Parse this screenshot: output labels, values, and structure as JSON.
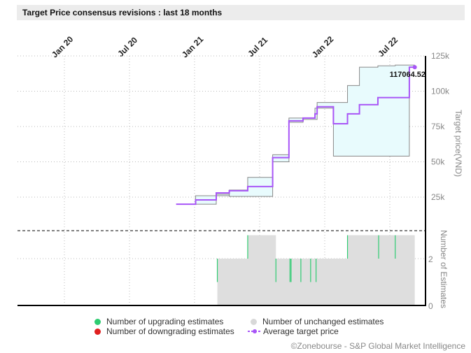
{
  "title": "Target Price consensus revisions : last 18 months",
  "credit": "©Zonebourse - S&P Global Market Intelligence",
  "chart_data": {
    "type": "line",
    "x_unit": "months since Jan 2020",
    "x_ticks": [
      {
        "label": "Jan 20",
        "m": 0
      },
      {
        "label": "Jul 20",
        "m": 6
      },
      {
        "label": "Jan 21",
        "m": 12
      },
      {
        "label": "Jul 21",
        "m": 18
      },
      {
        "label": "Jan 22",
        "m": 24
      },
      {
        "label": "Jul 22",
        "m": 30
      }
    ],
    "y_ticks": [
      {
        "label": "125k",
        "v": 125
      },
      {
        "label": "100k",
        "v": 100
      },
      {
        "label": "75k",
        "v": 75
      },
      {
        "label": "50k",
        "v": 50
      },
      {
        "label": "25k",
        "v": 25
      }
    ],
    "ylabel": "Target price(VND)",
    "ylim": [
      0,
      125
    ],
    "last_label": "117064.52",
    "average": [
      [
        10.3,
        20
      ],
      [
        12.1,
        20
      ],
      [
        12.1,
        23
      ],
      [
        14,
        23
      ],
      [
        14,
        28
      ],
      [
        15.2,
        28
      ],
      [
        15.2,
        29.5
      ],
      [
        16.9,
        29.5
      ],
      [
        16.9,
        32.5
      ],
      [
        19.2,
        32.5
      ],
      [
        19.2,
        53
      ],
      [
        20.7,
        53
      ],
      [
        20.7,
        79
      ],
      [
        22,
        79
      ],
      [
        22,
        81
      ],
      [
        23.1,
        81
      ],
      [
        23.1,
        84
      ],
      [
        23.3,
        84
      ],
      [
        23.3,
        89
      ],
      [
        24.8,
        89
      ],
      [
        24.8,
        77
      ],
      [
        26.1,
        77
      ],
      [
        26.1,
        84
      ],
      [
        27.2,
        84
      ],
      [
        27.2,
        90.5
      ],
      [
        28.9,
        90.5
      ],
      [
        28.9,
        95.5
      ],
      [
        31.8,
        95.5
      ],
      [
        31.8,
        117
      ],
      [
        32.3,
        117
      ]
    ],
    "max": [
      [
        12.1,
        20
      ],
      [
        12.1,
        26
      ],
      [
        15.2,
        26
      ],
      [
        15.2,
        30
      ],
      [
        16.9,
        30
      ],
      [
        16.9,
        39
      ],
      [
        19.2,
        39
      ],
      [
        19.2,
        55
      ],
      [
        20.7,
        55
      ],
      [
        20.7,
        81
      ],
      [
        23.1,
        81
      ],
      [
        23.1,
        88
      ],
      [
        23.3,
        88
      ],
      [
        23.3,
        92
      ],
      [
        26.1,
        92
      ],
      [
        26.1,
        104
      ],
      [
        27.2,
        104
      ],
      [
        27.2,
        117
      ],
      [
        28.9,
        117
      ],
      [
        28.9,
        118
      ],
      [
        30.5,
        118
      ],
      [
        30.5,
        118.5
      ],
      [
        32.3,
        118.5
      ]
    ],
    "min": [
      [
        12.1,
        20
      ],
      [
        14,
        20
      ],
      [
        14,
        27
      ],
      [
        15.2,
        27
      ],
      [
        15.2,
        25.5
      ],
      [
        19.2,
        25.5
      ],
      [
        19.2,
        50
      ],
      [
        20.7,
        50
      ],
      [
        20.7,
        78
      ],
      [
        22,
        78
      ],
      [
        22,
        80
      ],
      [
        23.3,
        80
      ],
      [
        23.3,
        88
      ],
      [
        24.8,
        88
      ],
      [
        24.8,
        54
      ],
      [
        31.8,
        54
      ],
      [
        31.8,
        117
      ],
      [
        32.3,
        117
      ]
    ],
    "estimates_ylabel": "Number of Estimates",
    "estimates_ticks": [
      {
        "label": "2",
        "v": 2
      },
      {
        "label": "0",
        "v": 0
      }
    ],
    "unchanged": [
      [
        14.1,
        2
      ],
      [
        16.9,
        3
      ],
      [
        19.5,
        2
      ],
      [
        26.1,
        3
      ],
      [
        32.3,
        0
      ]
    ],
    "upgrades": [
      14.1,
      16.9,
      19.5,
      20.8,
      20.9,
      21.8,
      22.7,
      23.2,
      26.1,
      28.97,
      30.5
    ],
    "colors": {
      "average": "#a855f7",
      "range": "#888888",
      "fill": "#e8fbfd",
      "unchanged": "#dedede",
      "upgrade": "#2ecc71",
      "downgrade": "#e02020"
    }
  },
  "legend": {
    "upgrading": "Number of upgrading estimates",
    "downgrading": "Number of downgrading estimates",
    "unchanged": "Number of unchanged estimates",
    "average": "Average target price"
  }
}
